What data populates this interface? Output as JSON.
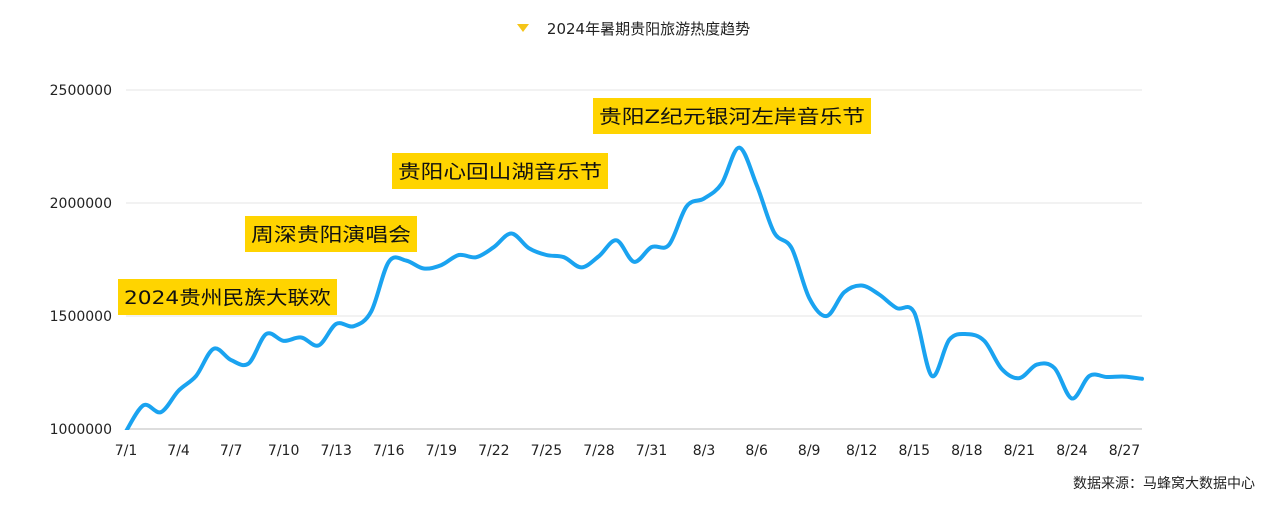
{
  "chart_data": {
    "type": "line",
    "title": "",
    "legend": {
      "position": "top-center",
      "entries": [
        "2024年暑期贵阳旅游热度趋势"
      ]
    },
    "xlabel": "",
    "ylabel": "",
    "ylim": [
      1000000,
      2500000
    ],
    "yticks": [
      1000000,
      1500000,
      2000000,
      2500000
    ],
    "grid": true,
    "x_tick_labels": [
      "7/1",
      "7/4",
      "7/7",
      "7/10",
      "7/13",
      "7/16",
      "7/19",
      "7/22",
      "7/25",
      "7/28",
      "7/31",
      "8/3",
      "8/6",
      "8/9",
      "8/12",
      "8/15",
      "8/18",
      "8/21",
      "8/24",
      "8/27"
    ],
    "x": [
      "7/1",
      "7/2",
      "7/3",
      "7/4",
      "7/5",
      "7/6",
      "7/7",
      "7/8",
      "7/9",
      "7/10",
      "7/11",
      "7/12",
      "7/13",
      "7/14",
      "7/15",
      "7/16",
      "7/17",
      "7/18",
      "7/19",
      "7/20",
      "7/21",
      "7/22",
      "7/23",
      "7/24",
      "7/25",
      "7/26",
      "7/27",
      "7/28",
      "7/29",
      "7/30",
      "7/31",
      "8/1",
      "8/2",
      "8/3",
      "8/4",
      "8/5",
      "8/6",
      "8/7",
      "8/8",
      "8/9",
      "8/10",
      "8/11",
      "8/12",
      "8/13",
      "8/14",
      "8/15",
      "8/16",
      "8/17",
      "8/18",
      "8/19",
      "8/20",
      "8/21",
      "8/22",
      "8/23",
      "8/24",
      "8/25",
      "8/26",
      "8/27",
      "8/28"
    ],
    "series": [
      {
        "name": "2024年暑期贵阳旅游热度趋势",
        "color": "#1aa3f0",
        "values": [
          990000,
          1105000,
          1075000,
          1170000,
          1235000,
          1355000,
          1305000,
          1290000,
          1420000,
          1390000,
          1405000,
          1370000,
          1465000,
          1455000,
          1520000,
          1740000,
          1745000,
          1710000,
          1725000,
          1770000,
          1760000,
          1805000,
          1865000,
          1800000,
          1770000,
          1760000,
          1715000,
          1765000,
          1835000,
          1740000,
          1805000,
          1815000,
          1985000,
          2020000,
          2085000,
          2245000,
          2080000,
          1870000,
          1800000,
          1580000,
          1500000,
          1605000,
          1635000,
          1595000,
          1535000,
          1515000,
          1235000,
          1395000,
          1420000,
          1390000,
          1265000,
          1225000,
          1285000,
          1270000,
          1135000,
          1235000,
          1230000,
          1232000,
          1222000
        ]
      }
    ],
    "annotations": [
      {
        "text": "2024贵州民族大联欢",
        "x": "7/4",
        "value": 1170000
      },
      {
        "text": "周深贵阳演唱会",
        "x": "7/11",
        "value": 1405000
      },
      {
        "text": "贵阳心回山湖音乐节",
        "x": "7/22",
        "value": 1805000
      },
      {
        "text": "贵阳Z纪元银河左岸音乐节",
        "x": "8/5",
        "value": 2245000
      }
    ],
    "annotation_color": "#ffd400",
    "source": "数据来源：马蜂窝大数据中心"
  }
}
